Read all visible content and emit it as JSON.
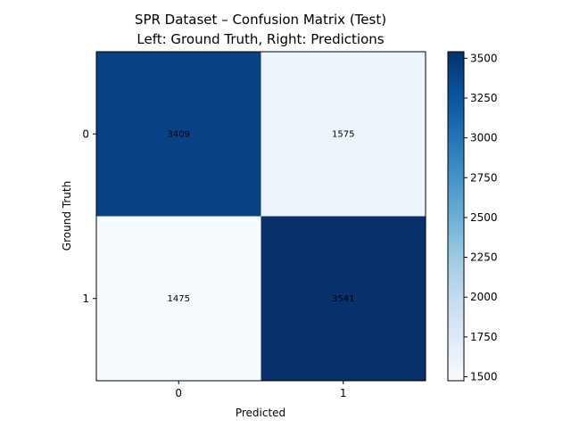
{
  "chart_data": {
    "type": "heatmap",
    "title_lines": [
      "SPR Dataset – Confusion Matrix (Test)",
      "Left: Ground Truth, Right: Predictions"
    ],
    "xlabel": "Predicted",
    "ylabel": "Ground Truth",
    "x_categories": [
      "0",
      "1"
    ],
    "y_categories": [
      "0",
      "1"
    ],
    "values": [
      [
        3409,
        1575
      ],
      [
        1475,
        3541
      ]
    ],
    "colormap": "Blues",
    "colorbar": {
      "range": [
        1475,
        3541
      ],
      "ticks": [
        1500,
        1750,
        2000,
        2250,
        2500,
        2750,
        3000,
        3250,
        3500
      ],
      "stops": [
        "#f7fbff",
        "#deebf7",
        "#c6dbef",
        "#9ecae1",
        "#6baed6",
        "#4292c6",
        "#2171b5",
        "#08519c",
        "#08306b"
      ]
    }
  }
}
